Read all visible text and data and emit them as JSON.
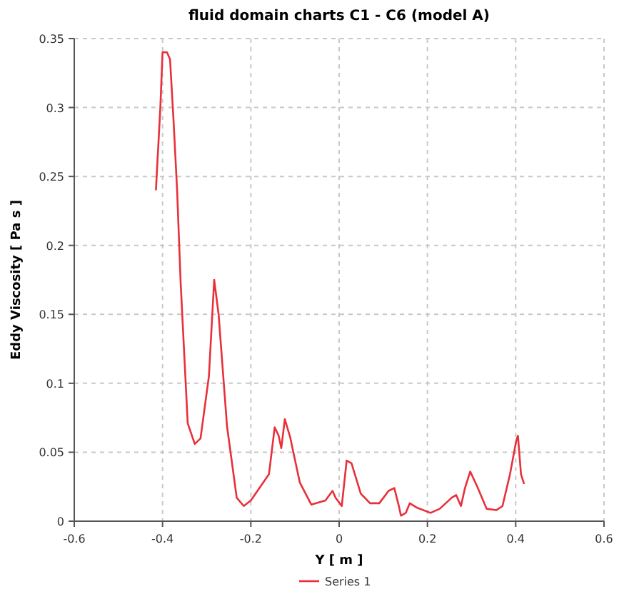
{
  "chart_data": {
    "type": "line",
    "title": "fluid domain charts C1 - C6 (model A)",
    "xlabel": "Y [ m ]",
    "ylabel": "Eddy Viscosity [ Pa s ]",
    "xlim": [
      -0.6,
      0.6
    ],
    "xticks": [
      -0.6,
      -0.4,
      -0.2,
      0,
      0.2,
      0.4,
      0.6
    ],
    "ylim": [
      0,
      0.35
    ],
    "yticks": [
      0,
      0.05,
      0.1,
      0.15,
      0.2,
      0.25,
      0.3,
      0.35
    ],
    "grid": true,
    "legend": "bottom",
    "line_style": "solid",
    "marker": "none",
    "series": [
      {
        "name": "Series 1",
        "color": "#e8303a",
        "x": [
          -0.415,
          -0.405,
          -0.4,
          -0.39,
          -0.383,
          -0.375,
          -0.367,
          -0.359,
          -0.343,
          -0.327,
          -0.314,
          -0.295,
          -0.283,
          -0.273,
          -0.254,
          -0.232,
          -0.216,
          -0.2,
          -0.159,
          -0.146,
          -0.137,
          -0.131,
          -0.123,
          -0.111,
          -0.089,
          -0.063,
          -0.031,
          -0.015,
          -0.008,
          0.006,
          0.017,
          0.028,
          0.049,
          0.07,
          0.091,
          0.112,
          0.125,
          0.136,
          0.14,
          0.151,
          0.16,
          0.175,
          0.207,
          0.228,
          0.255,
          0.265,
          0.276,
          0.285,
          0.297,
          0.313,
          0.334,
          0.356,
          0.37,
          0.387,
          0.401,
          0.405,
          0.412,
          0.419
        ],
        "values": [
          0.24,
          0.3,
          0.34,
          0.34,
          0.335,
          0.29,
          0.24,
          0.173,
          0.071,
          0.056,
          0.06,
          0.105,
          0.175,
          0.15,
          0.069,
          0.017,
          0.011,
          0.015,
          0.034,
          0.068,
          0.062,
          0.053,
          0.074,
          0.061,
          0.028,
          0.012,
          0.015,
          0.022,
          0.017,
          0.011,
          0.044,
          0.042,
          0.02,
          0.013,
          0.013,
          0.022,
          0.024,
          0.01,
          0.004,
          0.006,
          0.013,
          0.01,
          0.006,
          0.009,
          0.017,
          0.019,
          0.011,
          0.024,
          0.036,
          0.025,
          0.009,
          0.008,
          0.011,
          0.034,
          0.058,
          0.062,
          0.034,
          0.027
        ]
      }
    ]
  }
}
